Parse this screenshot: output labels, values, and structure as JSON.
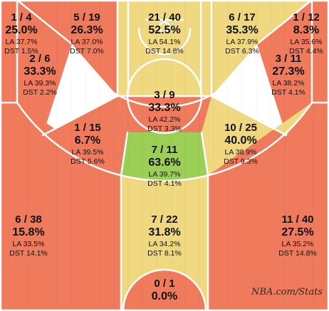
{
  "source_credit": "NBA.com/Stats",
  "colors": {
    "red": "#ef7a5c",
    "yellow": "#efd87f",
    "green": "#9bcf55",
    "line": "#ffffff"
  },
  "chart_data": {
    "type": "heatmap",
    "title": "",
    "zones": [
      {
        "id": "left-corner-three",
        "fg": "1 / 4",
        "pct": "25.0%",
        "la": "LA 37.7%",
        "dst": "DST 1.5%",
        "pct_value": 25.0,
        "color": "red"
      },
      {
        "id": "left-baseline-mid",
        "fg": "5 / 19",
        "pct": "26.3%",
        "la": "LA 37.0%",
        "dst": "DST 7.0%",
        "pct_value": 26.3,
        "color": "red"
      },
      {
        "id": "paint-upper",
        "fg": "21 / 40",
        "pct": "52.5%",
        "la": "LA 54.1%",
        "dst": "DST 14.8%",
        "pct_value": 52.5,
        "color": "yellow"
      },
      {
        "id": "right-baseline-mid",
        "fg": "6 / 17",
        "pct": "35.3%",
        "la": "LA 37.9%",
        "dst": "DST 6.3%",
        "pct_value": 35.3,
        "color": "yellow"
      },
      {
        "id": "right-corner-three",
        "fg": "1 / 12",
        "pct": "8.3%",
        "la": "LA 35.6%",
        "dst": "DST 4.4%",
        "pct_value": 8.3,
        "color": "red"
      },
      {
        "id": "left-elbow-mid",
        "fg": "2 / 6",
        "pct": "33.3%",
        "la": "LA 39.3%",
        "dst": "DST 2.2%",
        "pct_value": 33.3,
        "color": "red"
      },
      {
        "id": "right-elbow-mid",
        "fg": "3 / 11",
        "pct": "27.3%",
        "la": "LA 38.2%",
        "dst": "DST 4.1%",
        "pct_value": 27.3,
        "color": "red"
      },
      {
        "id": "free-throw-circle",
        "fg": "3 / 9",
        "pct": "33.3%",
        "la": "LA 42.2%",
        "dst": "DST 3.3%",
        "pct_value": 33.3,
        "color": "red"
      },
      {
        "id": "left-wing-mid",
        "fg": "1 / 15",
        "pct": "6.7%",
        "la": "LA 39.5%",
        "dst": "DST 5.6%",
        "pct_value": 6.7,
        "color": "red"
      },
      {
        "id": "right-wing-mid",
        "fg": "10 / 25",
        "pct": "40.0%",
        "la": "LA 38.9%",
        "dst": "DST 9.3%",
        "pct_value": 40.0,
        "color": "yellow"
      },
      {
        "id": "top-key-mid",
        "fg": "7 / 11",
        "pct": "63.6%",
        "la": "LA 39.7%",
        "dst": "DST 4.1%",
        "pct_value": 63.6,
        "color": "green"
      },
      {
        "id": "left-wing-three",
        "fg": "6 / 38",
        "pct": "15.8%",
        "la": "LA 33.5%",
        "dst": "DST 14.1%",
        "pct_value": 15.8,
        "color": "red"
      },
      {
        "id": "top-key-three",
        "fg": "7 / 22",
        "pct": "31.8%",
        "la": "LA 34.2%",
        "dst": "DST 8.1%",
        "pct_value": 31.8,
        "color": "yellow"
      },
      {
        "id": "right-wing-three",
        "fg": "11 / 40",
        "pct": "27.5%",
        "la": "LA 35.2%",
        "dst": "DST 14.8%",
        "pct_value": 27.5,
        "color": "red"
      },
      {
        "id": "backcourt",
        "fg": "0 / 1",
        "pct": "0.0%",
        "pct_value": 0.0,
        "color": "red"
      }
    ]
  }
}
